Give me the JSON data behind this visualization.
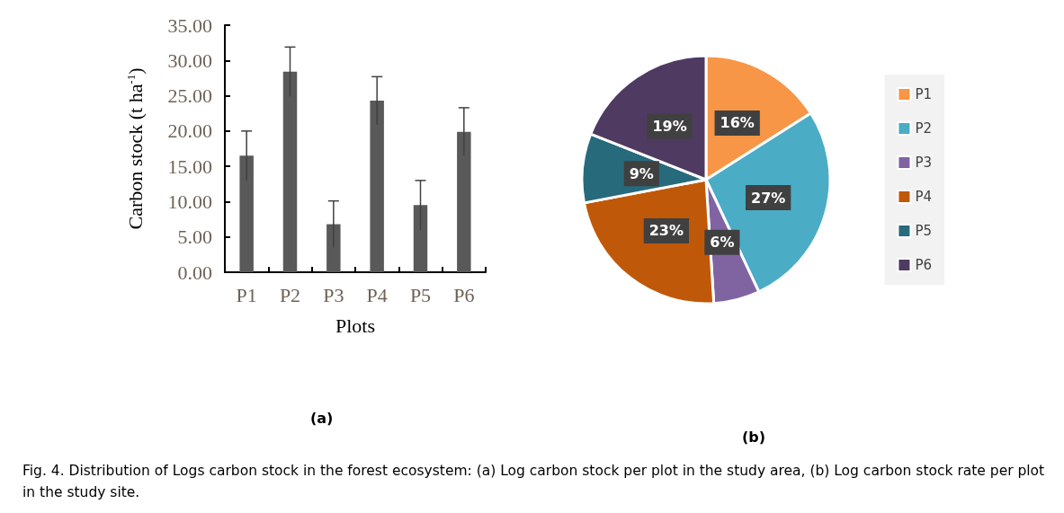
{
  "chart_data": [
    {
      "type": "bar",
      "xlabel": "Plots",
      "ylabel": "Carbon stock (t ha$^{-1}$)",
      "categories": [
        "P1",
        "P2",
        "P3",
        "P4",
        "P5",
        "P6"
      ],
      "values": [
        16.5,
        28.4,
        6.8,
        24.3,
        9.5,
        19.9
      ],
      "errors": [
        3.5,
        3.5,
        3.3,
        3.4,
        3.5,
        3.4
      ],
      "color": "#595959",
      "ylim": [
        0,
        35
      ],
      "yticks": [
        {
          "value": 0,
          "label": "0.00"
        },
        {
          "value": 5,
          "label": "5.00"
        },
        {
          "value": 10,
          "label": "10.00"
        },
        {
          "value": 15,
          "label": "15.00"
        },
        {
          "value": 20,
          "label": "20.00"
        },
        {
          "value": 25,
          "label": "25.00"
        },
        {
          "value": 30,
          "label": "30.00"
        },
        {
          "value": 35,
          "label": "35.00"
        }
      ],
      "grid": false,
      "legend": false,
      "annotations": [
        "(a)"
      ]
    },
    {
      "type": "pie",
      "categories": [
        "P1",
        "P2",
        "P3",
        "P4",
        "P5",
        "P6"
      ],
      "values": [
        16,
        27,
        6,
        23,
        9,
        19
      ],
      "colors": [
        "#f79646",
        "#4bacc6",
        "#8064a2",
        "#c0580a",
        "#276a7c",
        "#4f3a62"
      ],
      "value_labels": [
        "16%",
        "27%",
        "6%",
        "23%",
        "9%",
        "19%"
      ],
      "legend": "right",
      "annotations": [
        "(b)",
        "Fig. 4. Distribution of Logs carbon stock in the forest ecosystem: (a) Log carbon stock per plot in the study area, (b) Log carbon stock rate per plot in the study site."
      ]
    }
  ]
}
